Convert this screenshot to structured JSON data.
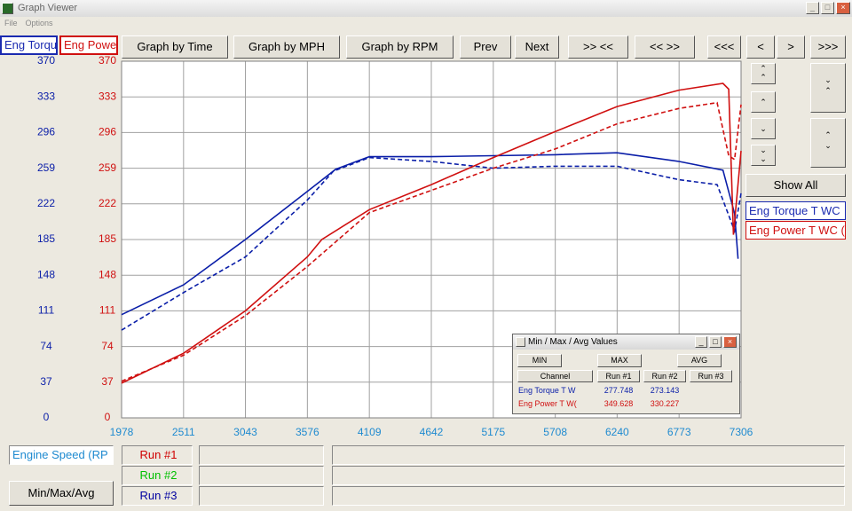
{
  "window": {
    "title": "Graph Viewer",
    "menu": [
      "File",
      "Options"
    ]
  },
  "toolbar": [
    "Graph by Time",
    "Graph by MPH",
    "Graph by RPM",
    "Prev",
    "Next",
    ">> <<",
    "<< >>",
    "<<<",
    "<",
    ">",
    ">>>"
  ],
  "side_button": "Show All",
  "bottom_button": "Min/Max/Avg",
  "chart_data": {
    "type": "line",
    "xlabel": "Engine Speed (RP",
    "ylabel": "Eng Torqu",
    "y2label": "Eng Powe",
    "xlim": [
      1978,
      7306
    ],
    "xticks": [
      1978,
      2511,
      3043,
      3576,
      4109,
      4642,
      5175,
      5708,
      6240,
      6773,
      7306
    ],
    "ylim": [
      0,
      370
    ],
    "yticks": [
      0,
      37,
      74,
      111,
      148,
      185,
      222,
      259,
      296,
      333,
      370
    ],
    "y2lim": [
      0,
      370
    ],
    "y2ticks": [
      0,
      37,
      74,
      111,
      148,
      185,
      222,
      259,
      296,
      333,
      370
    ],
    "grid": true,
    "runs": [
      {
        "name": "Run #1",
        "color": "#d00000",
        "dash": false
      },
      {
        "name": "Run #2",
        "color": "#00c000",
        "dash": true
      },
      {
        "name": "Run #3",
        "color": "#0000a0"
      }
    ],
    "series": [
      {
        "name": "Eng Torque T WC",
        "color": "#0a1ea8",
        "axis": "y",
        "runs": [
          {
            "x": [
              1978,
              2511,
              3043,
              3576,
              3820,
              4109,
              4642,
              5175,
              5708,
              6240,
              6773,
              7150,
              7250,
              7280
            ],
            "values": [
              107,
              138,
              185,
              235,
              258,
              271,
              271,
              272,
              273,
              275,
              266,
              257,
              212,
              165
            ]
          },
          {
            "x": [
              1978,
              2511,
              3043,
              3576,
              3800,
              4109,
              4642,
              5175,
              5708,
              6240,
              6773,
              7100,
              7250,
              7306
            ],
            "values": [
              91,
              130,
              167,
              226,
              256,
              270,
              266,
              259,
              261,
              261,
              247,
              242,
              194,
              233
            ]
          }
        ]
      },
      {
        "name": "Eng Power T WC (",
        "color": "#d01010",
        "axis": "y2",
        "runs": [
          {
            "x": [
              1978,
              2511,
              3043,
              3576,
              3700,
              4109,
              4642,
              5175,
              5708,
              6240,
              6773,
              7150,
              7200,
              7240,
              7306
            ],
            "values": [
              36,
              67,
              111,
              167,
              185,
              216,
              242,
              270,
              297,
              323,
              340,
              347,
              341,
              190,
              277
            ]
          },
          {
            "x": [
              1978,
              2511,
              3043,
              3576,
              4109,
              4642,
              5175,
              5708,
              6240,
              6773,
              7100,
              7200,
              7250,
              7306
            ],
            "values": [
              38,
              65,
              106,
              157,
              213,
              236,
              259,
              279,
              305,
              321,
              327,
              272,
              268,
              325
            ]
          }
        ]
      }
    ]
  },
  "dialog": {
    "title": "Min / Max / Avg Values",
    "buttons": [
      "MIN",
      "MAX",
      "AVG"
    ],
    "columns": [
      "Channel",
      "Run #1",
      "Run #2",
      "Run #3"
    ],
    "rows": [
      {
        "channel": "Eng Torque T W",
        "values": [
          277.748,
          273.143
        ]
      },
      {
        "channel": "Eng Power T W(",
        "values": [
          349.628,
          330.227
        ]
      }
    ]
  }
}
